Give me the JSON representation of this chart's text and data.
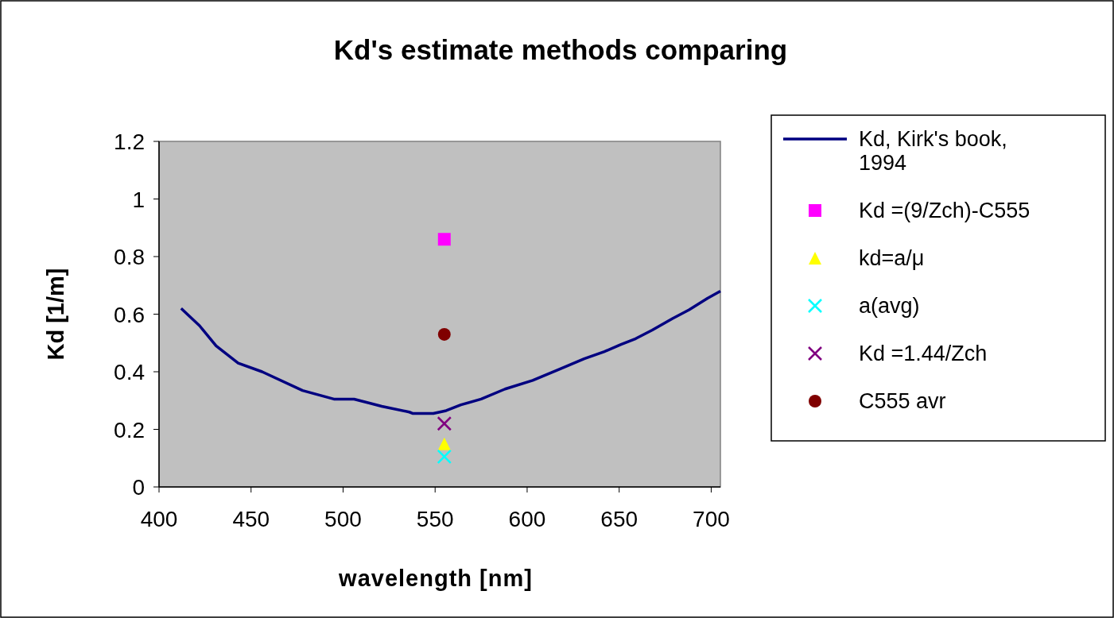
{
  "chart_data": {
    "type": "line",
    "title": "Kd's estimate methods comparing",
    "xlabel": "wavelength [nm]",
    "ylabel": "Kd [1/m]",
    "xlim": [
      400,
      705
    ],
    "xticks": [
      400,
      450,
      500,
      550,
      600,
      650,
      700
    ],
    "ylim": [
      0,
      1.2
    ],
    "yticks": [
      0,
      0.2,
      0.4,
      0.6,
      0.8,
      1,
      1.2
    ],
    "grid": false,
    "legend": "right",
    "series": [
      {
        "name": "Kd, Kirk's book, 1994",
        "color": "#000080",
        "marker": "none",
        "x": [
          412,
          422,
          431,
          443,
          456,
          478,
          495,
          506,
          521,
          536,
          538,
          549,
          556,
          564,
          575,
          588,
          603,
          618,
          631,
          642,
          651,
          659,
          668,
          679,
          688,
          698,
          705
        ],
        "values": [
          0.62,
          0.56,
          0.49,
          0.43,
          0.4,
          0.335,
          0.305,
          0.305,
          0.28,
          0.26,
          0.255,
          0.255,
          0.265,
          0.285,
          0.305,
          0.34,
          0.37,
          0.41,
          0.445,
          0.47,
          0.495,
          0.515,
          0.545,
          0.585,
          0.615,
          0.655,
          0.68
        ]
      },
      {
        "name": "Kd =(9/Zch)-C555",
        "type": "scatter",
        "color": "#ff00ff",
        "marker": "square",
        "x": [
          555
        ],
        "values": [
          0.86
        ]
      },
      {
        "name": "kd=a/μ",
        "type": "scatter",
        "color": "#ffff00",
        "marker": "triangle",
        "x": [
          555
        ],
        "values": [
          0.15
        ]
      },
      {
        "name": "a(avg)",
        "type": "scatter",
        "color": "#00ffff",
        "marker": "cross",
        "x": [
          555
        ],
        "values": [
          0.105
        ]
      },
      {
        "name": "Kd =1.44/Zch",
        "type": "scatter",
        "color": "#800080",
        "marker": "cross",
        "x": [
          555
        ],
        "values": [
          0.22
        ]
      },
      {
        "name": "C555 avr",
        "type": "scatter",
        "color": "#800000",
        "marker": "circle",
        "x": [
          555
        ],
        "values": [
          0.53
        ]
      }
    ]
  }
}
